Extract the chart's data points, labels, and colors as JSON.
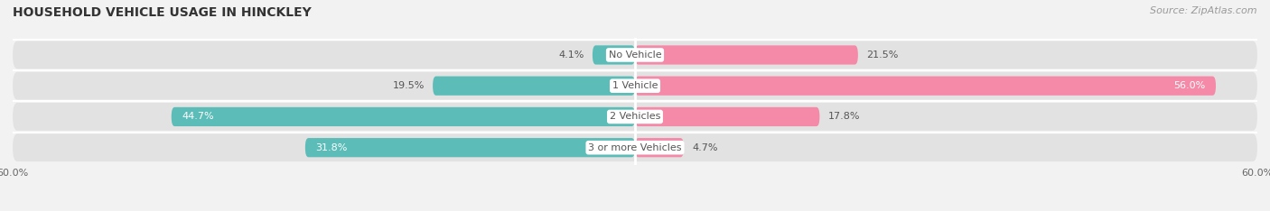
{
  "title": "HOUSEHOLD VEHICLE USAGE IN HINCKLEY",
  "source": "Source: ZipAtlas.com",
  "categories": [
    "No Vehicle",
    "1 Vehicle",
    "2 Vehicles",
    "3 or more Vehicles"
  ],
  "owner_values": [
    4.1,
    19.5,
    44.7,
    31.8
  ],
  "renter_values": [
    21.5,
    56.0,
    17.8,
    4.7
  ],
  "owner_color": "#5bbcb8",
  "renter_color": "#f589a8",
  "xlim": [
    -60,
    60
  ],
  "xticklabels": [
    "60.0%",
    "60.0%"
  ],
  "bg_color": "#f2f2f2",
  "bar_bg_color": "#e2e2e2",
  "title_fontsize": 10,
  "source_fontsize": 8,
  "label_fontsize": 8,
  "category_fontsize": 8,
  "bar_height": 0.62
}
